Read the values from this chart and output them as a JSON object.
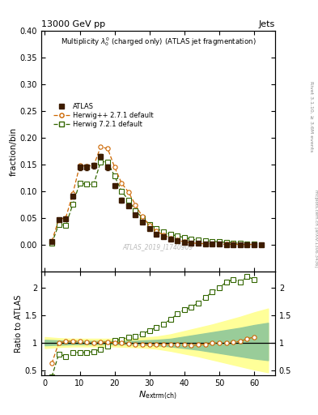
{
  "title_top": "13000 GeV pp",
  "title_right": "Jets",
  "right_label": "Rivet 3.1.10, ≥ 3.6M events",
  "arxiv_label": "mcplots.cern.ch [arXiv:1306.3436]",
  "watermark": "ATLAS_2019_I1740909",
  "main_title": "Multiplicity $\\lambda_0^0$ (charged only) (ATLAS jet fragmentation)",
  "ylabel_main": "fraction/bin",
  "ylabel_ratio": "Ratio to ATLAS",
  "xlabel": "$N_{\\rm extrm(ch)}$",
  "ylim_main": [
    -0.05,
    0.4
  ],
  "ylim_ratio": [
    0.4,
    2.3
  ],
  "xlim": [
    -1,
    66
  ],
  "atlas_x": [
    2,
    4,
    6,
    8,
    10,
    12,
    14,
    16,
    18,
    20,
    22,
    24,
    26,
    28,
    30,
    32,
    34,
    36,
    38,
    40,
    42,
    44,
    46,
    48,
    50,
    52,
    54,
    56,
    58,
    60,
    62
  ],
  "atlas_y": [
    0.005,
    0.046,
    0.048,
    0.09,
    0.145,
    0.145,
    0.148,
    0.165,
    0.145,
    0.11,
    0.083,
    0.073,
    0.055,
    0.042,
    0.03,
    0.02,
    0.014,
    0.01,
    0.007,
    0.004,
    0.003,
    0.002,
    0.001,
    0.0005,
    0.0003,
    0.0002,
    0.0001,
    0.0001,
    5e-05,
    3e-05,
    1e-05
  ],
  "atlas_yerr": [
    0.001,
    0.003,
    0.003,
    0.004,
    0.005,
    0.005,
    0.005,
    0.005,
    0.005,
    0.004,
    0.004,
    0.003,
    0.003,
    0.003,
    0.002,
    0.002,
    0.001,
    0.001,
    0.001,
    0.0005,
    0.0003,
    0.0002,
    0.0001,
    0.0001,
    5e-05,
    5e-05,
    3e-05,
    2e-05,
    1e-05,
    1e-05,
    5e-06
  ],
  "hpp_x": [
    2,
    4,
    6,
    8,
    10,
    12,
    14,
    16,
    18,
    20,
    22,
    24,
    26,
    28,
    30,
    32,
    34,
    36,
    38,
    40,
    42,
    44,
    46,
    48,
    50,
    52,
    54,
    56,
    58,
    60
  ],
  "hpp_y": [
    0.006,
    0.047,
    0.05,
    0.095,
    0.148,
    0.147,
    0.148,
    0.183,
    0.18,
    0.145,
    0.115,
    0.098,
    0.074,
    0.052,
    0.036,
    0.025,
    0.018,
    0.012,
    0.008,
    0.005,
    0.003,
    0.002,
    0.0015,
    0.001,
    0.0006,
    0.0004,
    0.0003,
    0.0002,
    0.0001,
    5e-05
  ],
  "h721_x": [
    2,
    4,
    6,
    8,
    10,
    12,
    14,
    16,
    18,
    20,
    22,
    24,
    26,
    28,
    30,
    32,
    34,
    36,
    38,
    40,
    42,
    44,
    46,
    48,
    50,
    52,
    54,
    56,
    58,
    60
  ],
  "h721_y": [
    0.002,
    0.038,
    0.036,
    0.075,
    0.115,
    0.113,
    0.113,
    0.155,
    0.155,
    0.128,
    0.1,
    0.083,
    0.063,
    0.05,
    0.038,
    0.03,
    0.024,
    0.019,
    0.016,
    0.013,
    0.01,
    0.008,
    0.007,
    0.006,
    0.005,
    0.004,
    0.003,
    0.002,
    0.0015,
    0.001
  ],
  "hpp_ratio_x": [
    2,
    4,
    6,
    8,
    10,
    12,
    14,
    16,
    18,
    20,
    22,
    24,
    26,
    28,
    30,
    32,
    34,
    36,
    38,
    40,
    42,
    44,
    46,
    48,
    50,
    52,
    54,
    56,
    58,
    60
  ],
  "hpp_ratio_y": [
    0.62,
    1.0,
    1.02,
    1.03,
    1.02,
    1.01,
    1.0,
    1.01,
    1.01,
    1.0,
    0.99,
    0.98,
    0.97,
    0.96,
    0.96,
    0.96,
    0.97,
    0.96,
    0.97,
    0.96,
    0.95,
    0.96,
    0.97,
    0.99,
    0.99,
    1.0,
    1.01,
    1.02,
    1.07,
    1.1
  ],
  "h721_ratio_x": [
    2,
    4,
    6,
    8,
    10,
    12,
    14,
    16,
    18,
    20,
    22,
    24,
    26,
    28,
    30,
    32,
    34,
    36,
    38,
    40,
    42,
    44,
    46,
    48,
    50,
    52,
    54,
    56,
    58,
    60
  ],
  "h721_ratio_y": [
    0.38,
    0.79,
    0.75,
    0.82,
    0.82,
    0.82,
    0.84,
    0.88,
    0.94,
    1.04,
    1.06,
    1.1,
    1.12,
    1.16,
    1.22,
    1.28,
    1.34,
    1.42,
    1.52,
    1.6,
    1.65,
    1.72,
    1.82,
    1.92,
    2.0,
    2.1,
    2.15,
    2.1,
    2.2,
    2.15
  ],
  "band_x": [
    0,
    4,
    8,
    12,
    16,
    20,
    24,
    28,
    32,
    36,
    40,
    44,
    48,
    52,
    56,
    60,
    64
  ],
  "band_green_low": [
    0.95,
    0.96,
    0.97,
    0.97,
    0.97,
    0.97,
    0.97,
    0.96,
    0.95,
    0.93,
    0.9,
    0.87,
    0.83,
    0.79,
    0.75,
    0.71,
    0.68
  ],
  "band_green_high": [
    1.05,
    1.04,
    1.03,
    1.03,
    1.03,
    1.03,
    1.03,
    1.04,
    1.05,
    1.07,
    1.11,
    1.15,
    1.19,
    1.23,
    1.27,
    1.32,
    1.36
  ],
  "band_yellow_low": [
    0.9,
    0.92,
    0.93,
    0.93,
    0.93,
    0.93,
    0.92,
    0.91,
    0.89,
    0.85,
    0.8,
    0.75,
    0.69,
    0.63,
    0.57,
    0.51,
    0.46
  ],
  "band_yellow_high": [
    1.1,
    1.08,
    1.07,
    1.07,
    1.07,
    1.07,
    1.08,
    1.09,
    1.11,
    1.15,
    1.21,
    1.27,
    1.33,
    1.4,
    1.47,
    1.55,
    1.62
  ],
  "color_atlas": "#3D1C00",
  "color_hpp": "#CC6600",
  "color_h721": "#336600",
  "color_band_green": "#99CC99",
  "color_band_yellow": "#FFFF99",
  "xticks": [
    0,
    10,
    20,
    30,
    40,
    50,
    60
  ],
  "yticks_main": [
    0.0,
    0.05,
    0.1,
    0.15,
    0.2,
    0.25,
    0.3,
    0.35,
    0.4
  ],
  "yticks_ratio": [
    0.5,
    1.0,
    1.5,
    2.0
  ]
}
